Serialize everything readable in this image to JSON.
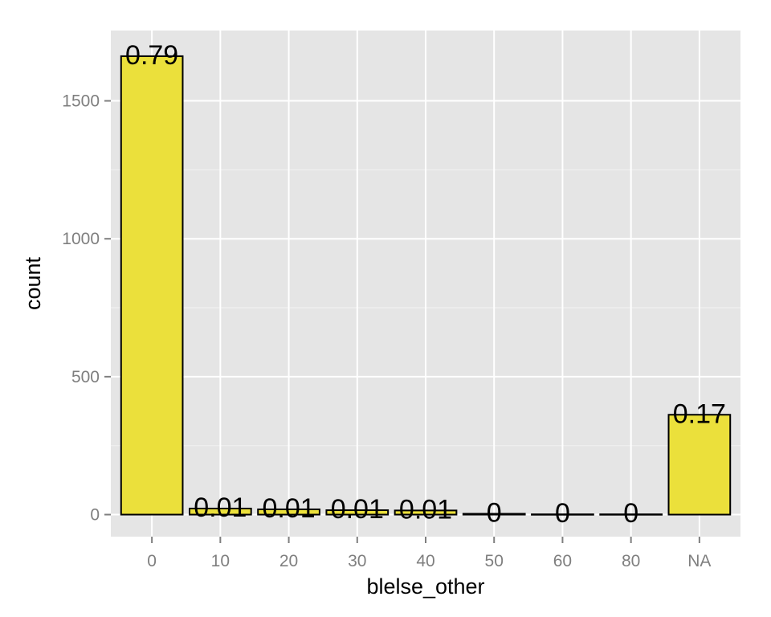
{
  "chart_data": {
    "type": "bar",
    "categories": [
      "0",
      "10",
      "20",
      "30",
      "40",
      "50",
      "60",
      "80",
      "NA"
    ],
    "values": [
      1662,
      22,
      19,
      16,
      15,
      3,
      1,
      1,
      362
    ],
    "data_labels": [
      "0.79",
      "0.01",
      "0.01",
      "0.01",
      "0.01",
      "0",
      "0",
      "0",
      "0.17"
    ],
    "xlabel": "blelse_other",
    "ylabel": "count",
    "ylim": [
      -80,
      1755
    ],
    "yticks": [
      0,
      500,
      1000,
      1500
    ],
    "ytick_labels": [
      "0",
      "500",
      "1000",
      "1500"
    ],
    "grid": true,
    "colors": {
      "bar_fill": "#EBE03B",
      "bar_stroke": "#000000",
      "panel_background": "#E5E5E5",
      "grid_major": "#FFFFFF",
      "grid_minor": "#F2F2F2",
      "tick_text": "#7F7F7F",
      "tick_mark": "#7F7F7F",
      "axis_title": "#000000"
    }
  }
}
